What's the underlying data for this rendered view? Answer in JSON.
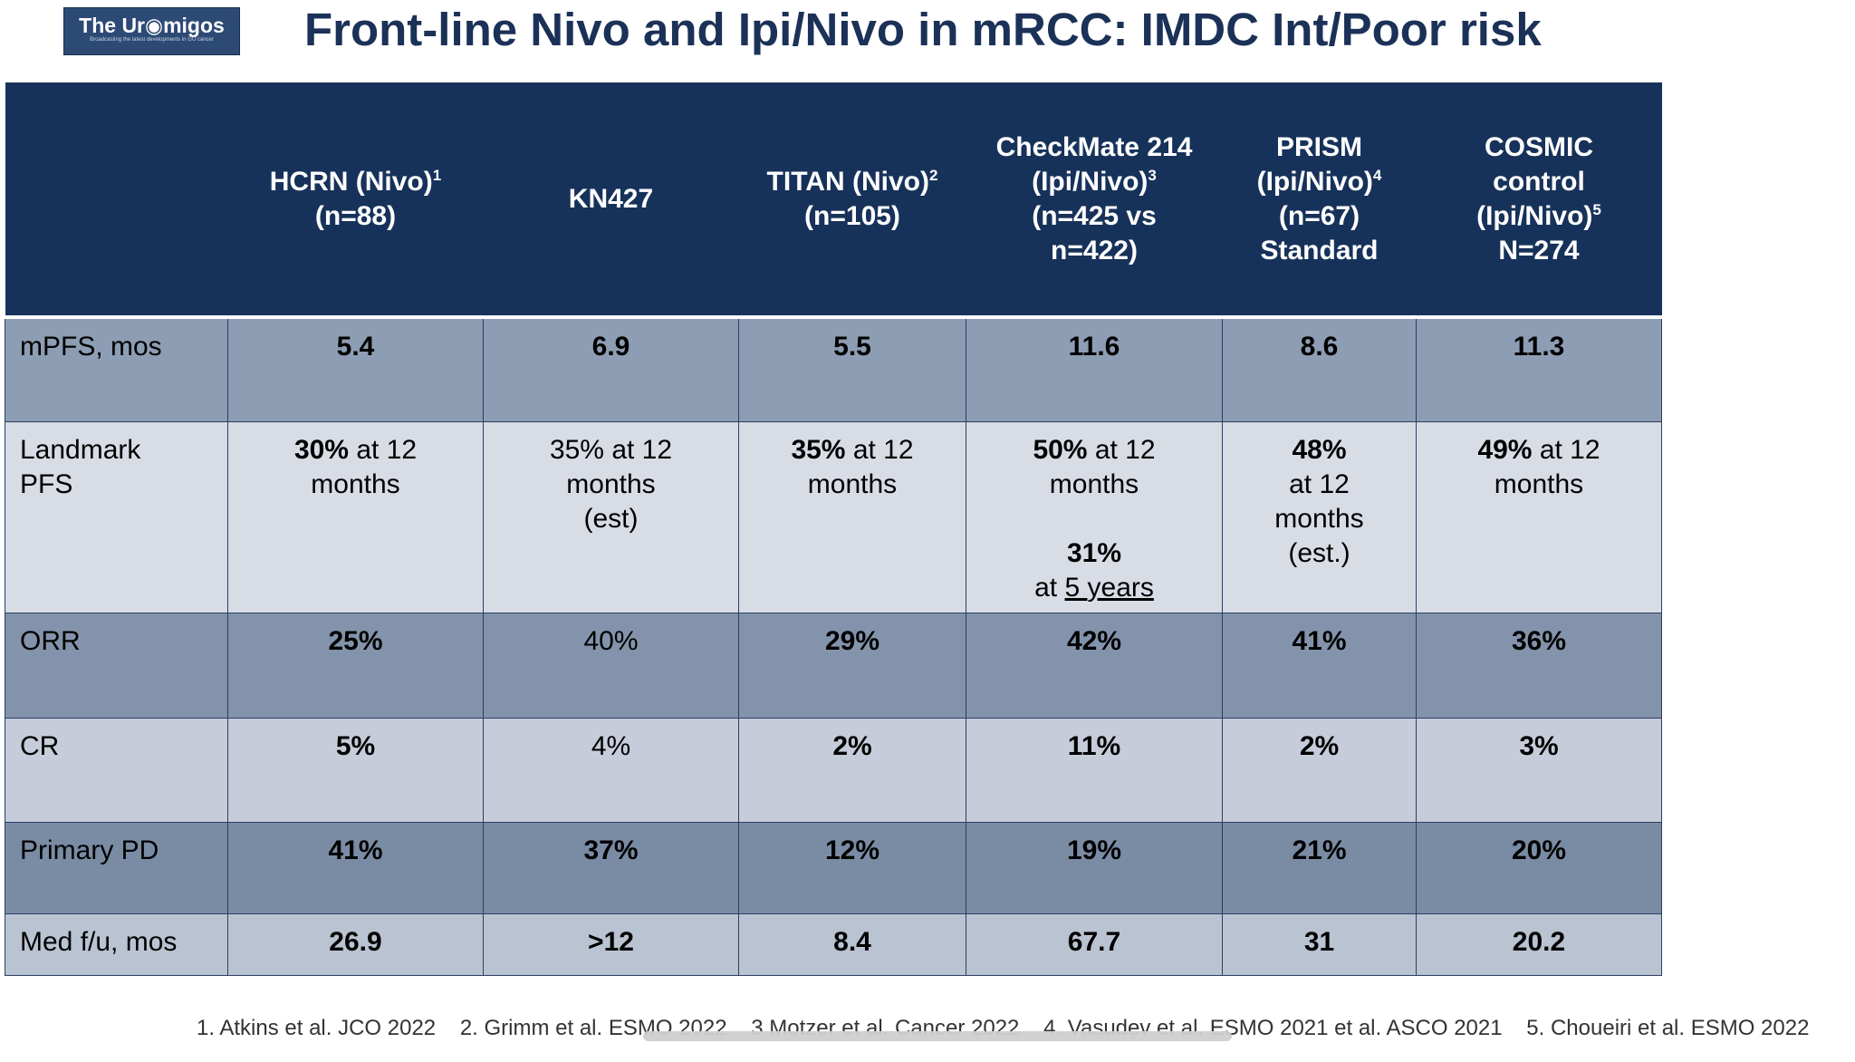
{
  "logo": {
    "text": "The Ur◉migos",
    "tagline": "Broadcasting the latest developments in GU cancer"
  },
  "title": "Front-line Nivo and Ipi/Nivo in mRCC: IMDC Int/Poor risk",
  "table": {
    "columns": [
      {
        "label": "HCRN (Nivo)",
        "sup": "1",
        "label2": "(n=88)"
      },
      {
        "label": "KN427"
      },
      {
        "label": "TITAN (Nivo)",
        "sup": "2",
        "label2": "(n=105)"
      },
      {
        "label": "CheckMate 214",
        "label_b": "(Ipi/Nivo)",
        "sup": "3",
        "label2": "(n=425 vs",
        "label3": "n=422)"
      },
      {
        "label": "PRISM",
        "label_b": "(Ipi/Nivo)",
        "sup": "4",
        "label2": "(n=67)",
        "label3": "Standard"
      },
      {
        "label": "COSMIC",
        "label_b": "control",
        "label_c": "(Ipi/Nivo)",
        "sup": "5",
        "label2": "N=274"
      }
    ],
    "rows": [
      {
        "label": "mPFS, mos",
        "cells": [
          "5.4",
          "6.9",
          "5.5",
          "11.6",
          "8.6",
          "11.3"
        ]
      },
      {
        "label": "Landmark",
        "label2": "PFS"
      },
      {
        "label": "ORR",
        "cells": [
          "25%",
          "40%",
          "29%",
          "42%",
          "41%",
          "36%"
        ]
      },
      {
        "label": "CR",
        "cells": [
          "5%",
          "4%",
          "2%",
          "11%",
          "2%",
          "3%"
        ]
      },
      {
        "label": "Primary PD",
        "cells": [
          "41%",
          "37%",
          "12%",
          "19%",
          "21%",
          "20%"
        ]
      },
      {
        "label": "Med f/u, mos",
        "cells": [
          "26.9",
          ">12",
          "8.4",
          "67.7",
          "31",
          "20.2"
        ]
      }
    ],
    "landmark": {
      "hcrn": {
        "value": "30%",
        "rest": " at 12",
        "line2": "months"
      },
      "kn427": {
        "line1": "35% at 12",
        "line2": "months",
        "line3": "(est)"
      },
      "titan": {
        "value": "35%",
        "rest": " at 12",
        "line2": "months"
      },
      "checkmate": {
        "value": "50%",
        "rest": " at 12",
        "line2": "months",
        "value2": "31%",
        "at_prefix": "at ",
        "at_underlined": "5 years"
      },
      "prism": {
        "value": "48%",
        "line2": "at 12",
        "line3": "months",
        "line4": "(est.)"
      },
      "cosmic": {
        "value": "49%",
        "rest": " at 12",
        "line2": "months"
      }
    }
  },
  "footnotes": [
    "1. Atkins et al. JCO 2022",
    "2. Grimm et al. ESMO 2022",
    "3 Motzer et al. Cancer 2022",
    "4. Vasudev et al. ESMO 2021  et al. ASCO 2021",
    "5. Choueiri et al. ESMO 2022"
  ]
}
